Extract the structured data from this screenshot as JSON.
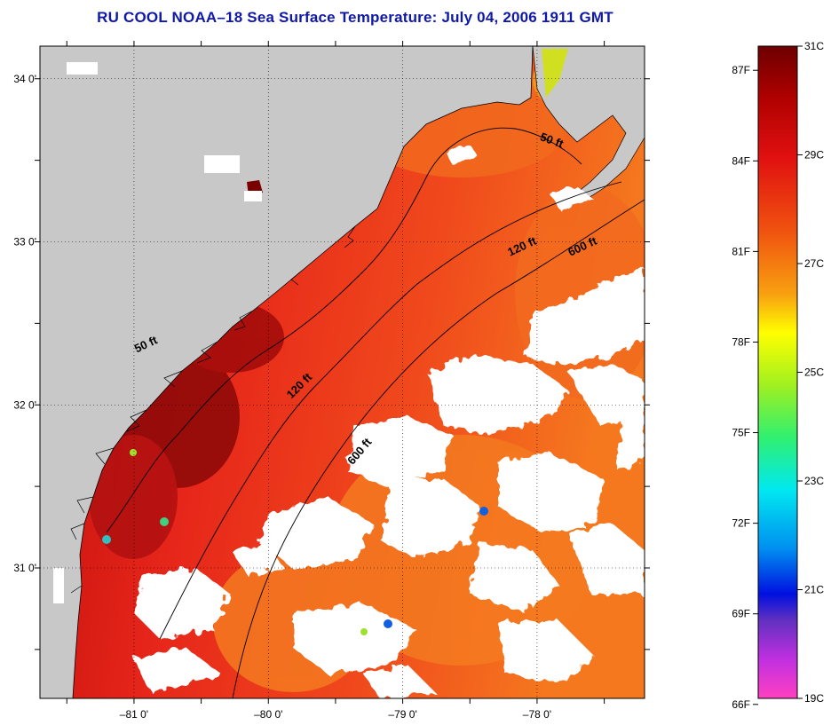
{
  "title": "RU COOL  NOAA–18  Sea Surface Temperature:  July 04, 2006 1911 GMT",
  "axes": {
    "x_ticks": [
      {
        "label": "–81 0'",
        "lon": -81
      },
      {
        "label": "–80 0'",
        "lon": -80
      },
      {
        "label": "–79 0'",
        "lon": -79
      },
      {
        "label": "–78 0'",
        "lon": -78
      }
    ],
    "y_ticks": [
      {
        "label": "34 0'",
        "lat": 34
      },
      {
        "label": "33 0'",
        "lat": 33
      },
      {
        "label": "32 0'",
        "lat": 32
      },
      {
        "label": "31 0'",
        "lat": 31
      }
    ],
    "lon_range": [
      -81.7,
      -77.2
    ],
    "lat_range": [
      30.2,
      34.2
    ]
  },
  "contour_labels": [
    {
      "label": "50 ft",
      "lon": -77.9,
      "lat": 33.6,
      "angle": 20
    },
    {
      "label": "50 ft",
      "lon": -80.9,
      "lat": 32.35,
      "angle": -25
    },
    {
      "label": "120 ft",
      "lon": -78.1,
      "lat": 32.95,
      "angle": -25
    },
    {
      "label": "120 ft",
      "lon": -79.75,
      "lat": 32.1,
      "angle": -45
    },
    {
      "label": "600 ft",
      "lon": -77.65,
      "lat": 32.95,
      "angle": -25
    },
    {
      "label": "600 ft",
      "lon": -79.3,
      "lat": 31.7,
      "angle": -50
    }
  ],
  "colorbar": {
    "celsius_labels": [
      "31C",
      "29C",
      "27C",
      "25C",
      "23C",
      "21C",
      "19C"
    ],
    "fahrenheit_labels": [
      "87F",
      "84F",
      "81F",
      "78F",
      "75F",
      "72F",
      "69F",
      "66F"
    ],
    "range_c": [
      19,
      31
    ]
  },
  "colors": {
    "land": "#c8c8c8",
    "cloud": "#ffffff",
    "title": "#1018a8",
    "sea_warm": "#e8281a",
    "sea_hot": "#8b0000",
    "sea_mid": "#f26a1e"
  }
}
